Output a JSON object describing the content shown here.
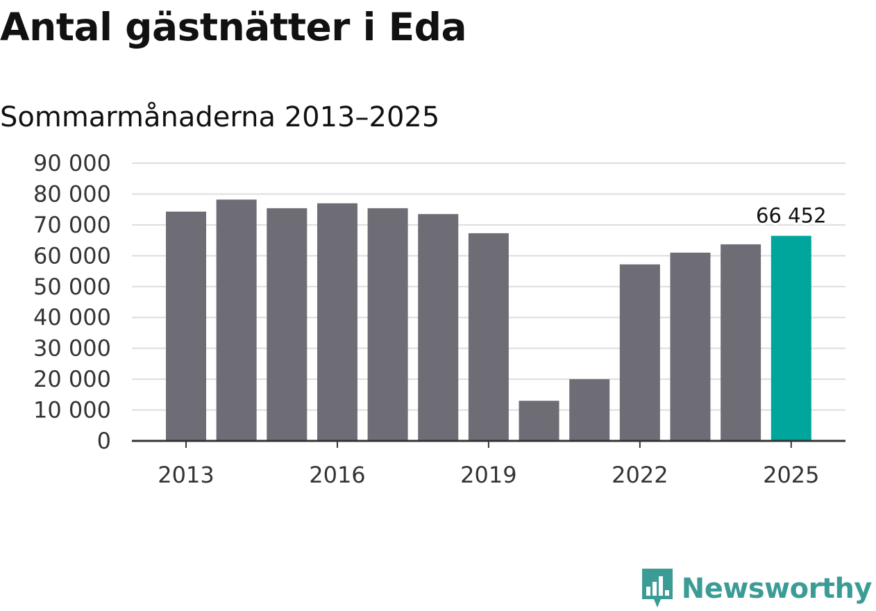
{
  "title": "Antal gästnätter i Eda",
  "subtitle": "Sommarmånaderna 2013–2025",
  "brand": {
    "name": "Newsworthy",
    "icon": "newsworthy-logo-icon",
    "color": "#3b9c96"
  },
  "chart_data": {
    "type": "bar",
    "categories": [
      "2013",
      "2014",
      "2015",
      "2016",
      "2017",
      "2018",
      "2019",
      "2020",
      "2021",
      "2022",
      "2023",
      "2024",
      "2025"
    ],
    "values": [
      74300,
      78200,
      75400,
      77000,
      75400,
      73500,
      67300,
      13000,
      20000,
      57200,
      61000,
      63700,
      66452
    ],
    "ylim": [
      0,
      90000
    ],
    "y_ticks": [
      0,
      10000,
      20000,
      30000,
      40000,
      50000,
      60000,
      70000,
      80000,
      90000
    ],
    "y_tick_labels": [
      "0",
      "10 000",
      "20 000",
      "30 000",
      "40 000",
      "50 000",
      "60 000",
      "70 000",
      "80 000",
      "90 000"
    ],
    "x_tick_labels": [
      "2013",
      "2016",
      "2019",
      "2022",
      "2025"
    ],
    "xlabel": "",
    "ylabel": "",
    "grid": true,
    "highlight": {
      "category": "2025",
      "label": "66 452"
    },
    "colors": {
      "bar": "#6e6d75",
      "highlight": "#00a59b",
      "grid": "#dddddd",
      "axis": "#333333"
    }
  }
}
